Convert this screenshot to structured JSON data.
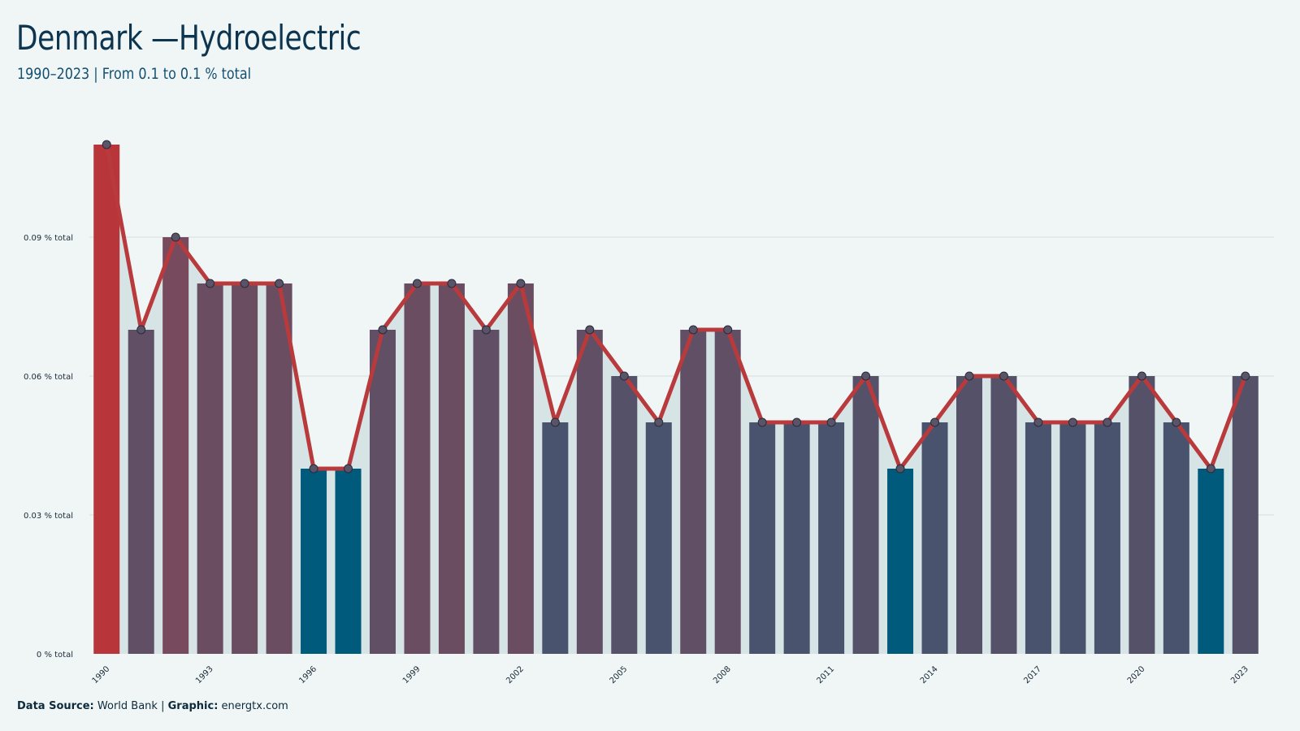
{
  "title": "Denmark —Hydroelectric",
  "subtitle": "1990–2023 | From 0.1 to 0.1 % total",
  "footer": {
    "source_label": "Data Source:",
    "source_value": "World Bank",
    "separator": "|",
    "graphic_label": "Graphic:",
    "graphic_value": "energtx.com"
  },
  "colors": {
    "background": "#f0f6f6",
    "line": "#b83a3c",
    "high": "#b83539",
    "low": "#005a7c",
    "area": "#d6e4e6",
    "grid": "#d3dddf"
  },
  "chart_data": {
    "type": "bar",
    "x": [
      1990,
      1991,
      1992,
      1993,
      1994,
      1995,
      1996,
      1997,
      1998,
      1999,
      2000,
      2001,
      2002,
      2003,
      2004,
      2005,
      2006,
      2007,
      2008,
      2009,
      2010,
      2011,
      2012,
      2013,
      2014,
      2015,
      2016,
      2017,
      2018,
      2019,
      2020,
      2021,
      2022,
      2023
    ],
    "values": [
      0.11,
      0.07,
      0.09,
      0.08,
      0.08,
      0.08,
      0.04,
      0.04,
      0.07,
      0.08,
      0.08,
      0.07,
      0.08,
      0.05,
      0.07,
      0.06,
      0.05,
      0.07,
      0.07,
      0.05,
      0.05,
      0.05,
      0.06,
      0.04,
      0.05,
      0.06,
      0.06,
      0.05,
      0.05,
      0.05,
      0.06,
      0.05,
      0.04,
      0.06
    ],
    "x_tick_labels": [
      "1990",
      "1993",
      "1996",
      "1999",
      "2002",
      "2005",
      "2008",
      "2011",
      "2014",
      "2017",
      "2020",
      "2023"
    ],
    "y_ticks": [
      0,
      0.03,
      0.06,
      0.09
    ],
    "y_tick_labels": [
      "0 % total",
      "0.03 % total",
      "0.06 % total",
      "0.09 % total"
    ],
    "ylim": [
      0,
      0.11
    ],
    "grid": true,
    "overlay": "line"
  }
}
